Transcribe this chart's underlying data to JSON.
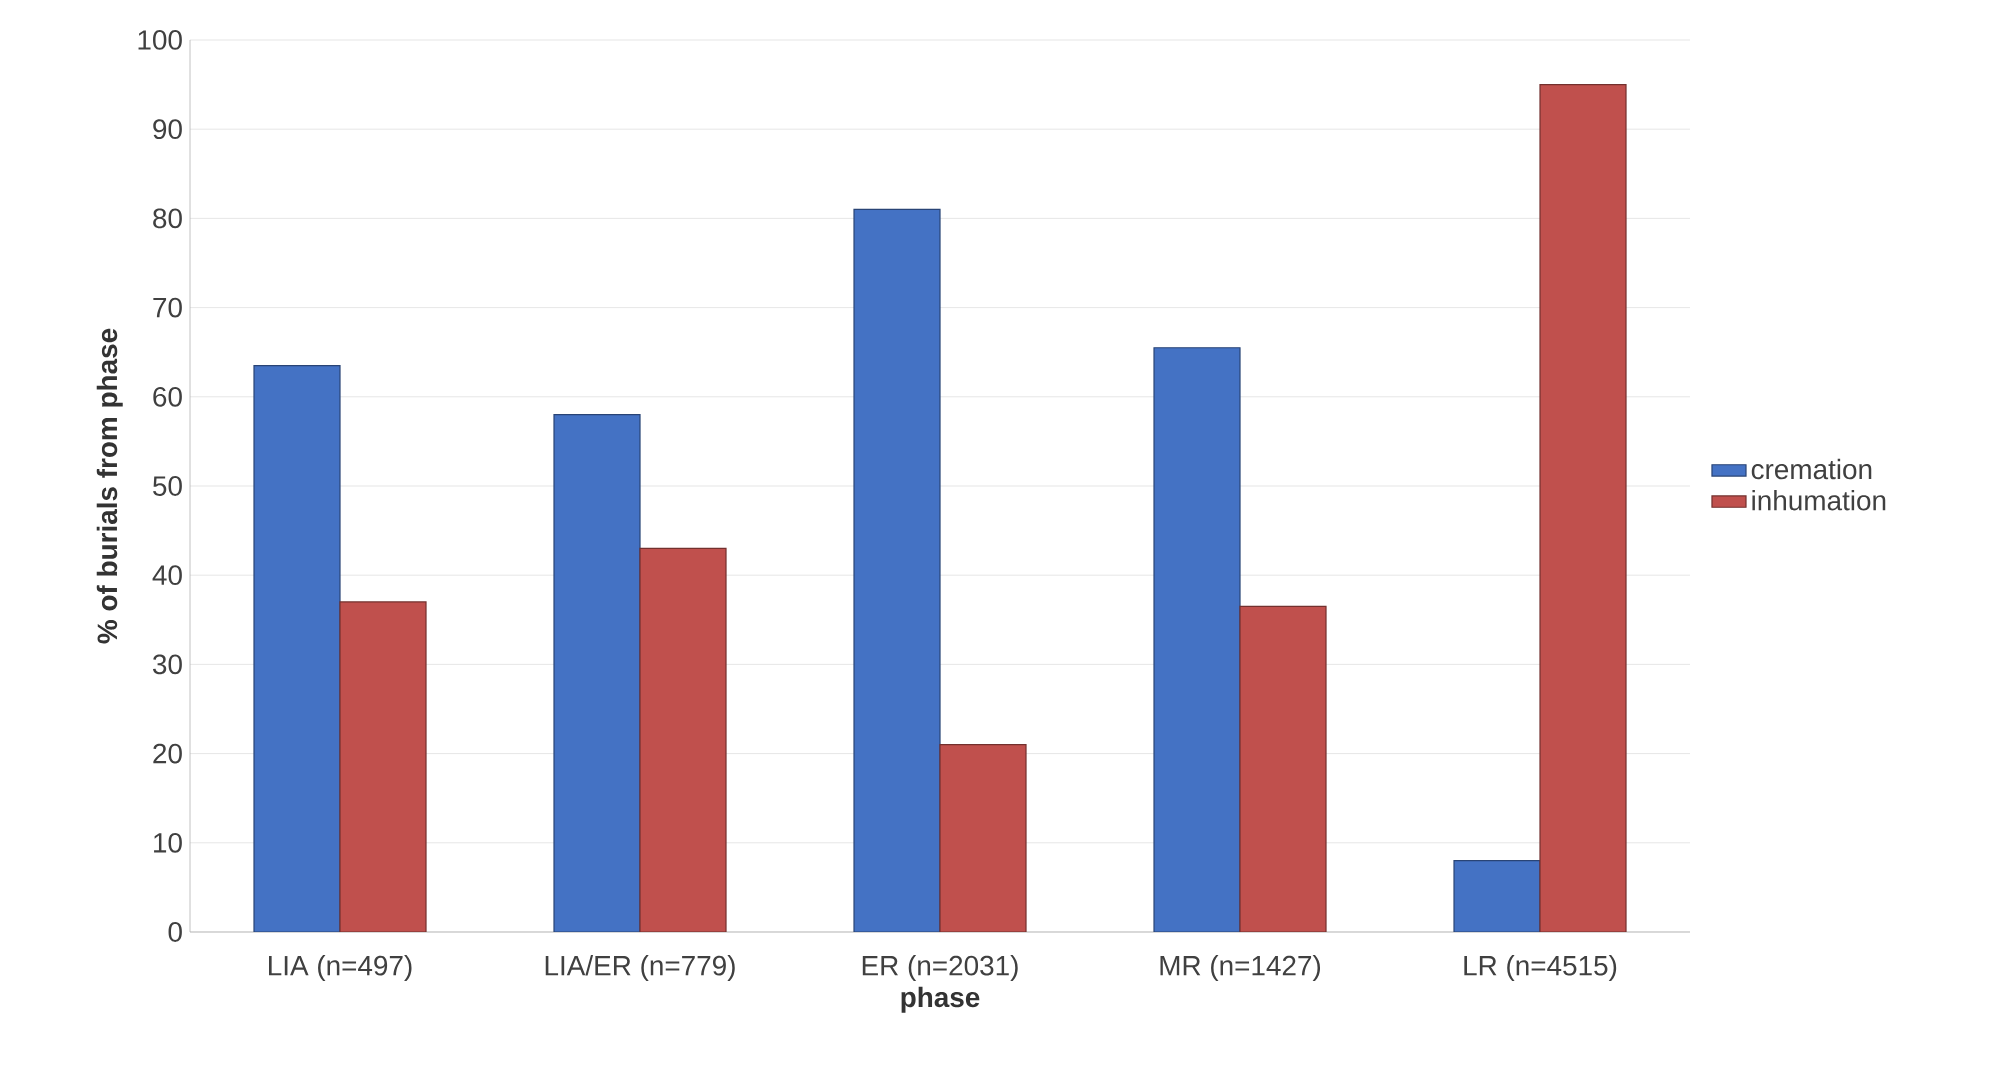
{
  "chart_data": {
    "type": "bar",
    "xlabel": "phase",
    "ylabel": "% of burials from phase",
    "categories": [
      "LIA (n=497)",
      "LIA/ER (n=779)",
      "ER (n=2031)",
      "MR (n=1427)",
      "LR (n=4515)"
    ],
    "series": [
      {
        "name": "cremation",
        "color": "#4472c4",
        "values": [
          63.5,
          58,
          81,
          65.5,
          8
        ]
      },
      {
        "name": "inhumation",
        "color": "#c0504d",
        "values": [
          37,
          43,
          21,
          36.5,
          95
        ]
      }
    ],
    "ylim": [
      0,
      100
    ],
    "yticks": [
      0,
      10,
      20,
      30,
      40,
      50,
      60,
      70,
      80,
      90,
      100
    ],
    "grid": "y",
    "legend": "right"
  }
}
